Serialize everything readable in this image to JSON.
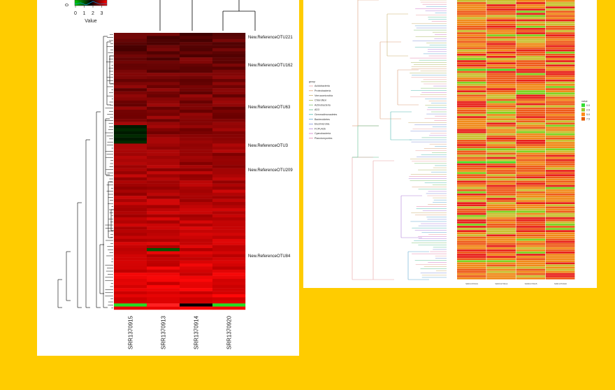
{
  "chart_data": [
    {
      "type": "heatmap",
      "color_key": {
        "title": "Value",
        "ticks": [
          "0",
          "1",
          "2",
          "3"
        ],
        "colors": [
          "#00cc00",
          "#000000",
          "#ff0000"
        ]
      },
      "columns": [
        "SRR1370915",
        "SRR1370913",
        "SRR1370914",
        "SRR1370920"
      ],
      "annotated_rows": [
        "New.ReferenceOTU221",
        "New.ReferenceOTU162",
        "New.ReferenceOTU63",
        "New.ReferenceOTU3",
        "New.ReferenceOTU209",
        "New.ReferenceOTU84"
      ],
      "dendrogram": "row and column clustering",
      "colors": {
        "low": "#00cc00",
        "mid": "#000000",
        "high": "#ff0000"
      }
    },
    {
      "type": "heatmap",
      "legend_group": {
        "title": "group",
        "entries": [
          {
            "name": "Acidobacteria",
            "color": "#e8a0a0"
          },
          {
            "name": "Proteobacteria",
            "color": "#d9a07a"
          },
          {
            "name": "Verrucomicrobia",
            "color": "#c9b070"
          },
          {
            "name": "Chloroflexi",
            "color": "#a8b860"
          },
          {
            "name": "Actinobacteria",
            "color": "#7fc070"
          },
          {
            "name": "AD3",
            "color": "#60c090"
          },
          {
            "name": "Gemmatimonadetes",
            "color": "#50b8b0"
          },
          {
            "name": "Bacteroidetes",
            "color": "#60a8d0"
          },
          {
            "name": "Elusimicrobia",
            "color": "#8090d8"
          },
          {
            "name": "FCPU426",
            "color": "#b080d8"
          },
          {
            "name": "Cyanobacteria",
            "color": "#d078c8"
          },
          {
            "name": "Planctomycetes",
            "color": "#e080a8"
          }
        ]
      },
      "legend_value": {
        "title": "value",
        "ticks": [
          "0.0",
          "2.5",
          "5.0",
          "7.5"
        ],
        "colors": [
          "#33dd33",
          "#99cc33",
          "#ff8c1a",
          "#e65c00"
        ]
      },
      "columns": [
        "SRR1370913",
        "SRR1370914",
        "SRR1370915",
        "SRR1370920"
      ],
      "colors": {
        "low": "#33dd33",
        "mid": "#f0a020",
        "high": "#e8201a"
      }
    }
  ]
}
